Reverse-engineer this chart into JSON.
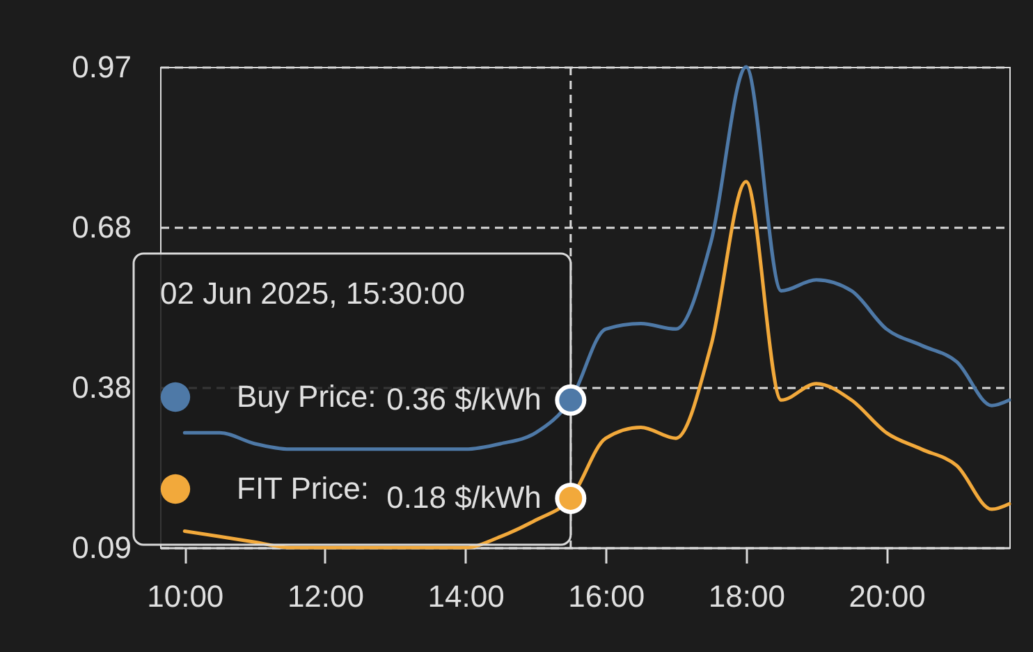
{
  "chart_data": {
    "type": "line",
    "x": [
      10,
      10.5,
      11,
      11.5,
      12,
      12.5,
      13,
      13.5,
      14,
      14.5,
      15,
      15.5,
      16,
      16.5,
      17,
      17.5,
      18,
      18.5,
      19,
      19.5,
      20,
      20.5,
      21,
      21.5,
      21.75
    ],
    "xlim": [
      9.65,
      21.75
    ],
    "xticks": [
      {
        "value": 10,
        "label": "10:00"
      },
      {
        "value": 12,
        "label": "12:00"
      },
      {
        "value": 14,
        "label": "14:00"
      },
      {
        "value": 16,
        "label": "16:00"
      },
      {
        "value": 18,
        "label": "18:00"
      },
      {
        "value": 20,
        "label": "20:00"
      }
    ],
    "ylim": [
      0.09,
      0.97
    ],
    "yticks": [
      0.09,
      {
        "value": 0.3833,
        "label": "0.38"
      },
      {
        "value": 0.6767,
        "label": "0.68"
      },
      0.97
    ],
    "grid": "y",
    "legend": "left",
    "legend_title": "02 Jun 2025, 15:30:00",
    "series": [
      {
        "name": "Buy Price:",
        "color": "#4e79a7",
        "values": [
          0.3,
          0.3,
          0.28,
          0.27,
          0.27,
          0.27,
          0.27,
          0.27,
          0.27,
          0.28,
          0.3,
          0.36,
          0.49,
          0.5,
          0.49,
          0.65,
          0.97,
          0.56,
          0.58,
          0.56,
          0.49,
          0.46,
          0.43,
          0.35,
          0.36
        ],
        "value_labels": [
          null,
          null,
          null,
          null,
          null,
          null,
          null,
          null,
          null,
          null,
          null,
          "0.36 $/kWh",
          null,
          null,
          null,
          null,
          null,
          null,
          null,
          null,
          null,
          null,
          null,
          null,
          null
        ]
      },
      {
        "name": "FIT Price:",
        "color": "#f2a93b",
        "values": [
          0.12,
          0.11,
          0.1,
          0.09,
          0.09,
          0.09,
          0.09,
          0.09,
          0.09,
          0.11,
          0.14,
          0.18,
          0.29,
          0.31,
          0.29,
          0.46,
          0.76,
          0.36,
          0.39,
          0.36,
          0.3,
          0.27,
          0.24,
          0.16,
          0.17
        ],
        "value_labels": [
          null,
          null,
          null,
          null,
          null,
          null,
          null,
          null,
          null,
          null,
          null,
          "0.18 $/kWh",
          null,
          null,
          null,
          null,
          null,
          null,
          null,
          null,
          null,
          null,
          null,
          null,
          null
        ]
      }
    ],
    "ref_lines": [
      {
        "axis": "x",
        "value": 15.5,
        "color": "#d9d9d9",
        "line_style": "dashed"
      }
    ]
  }
}
